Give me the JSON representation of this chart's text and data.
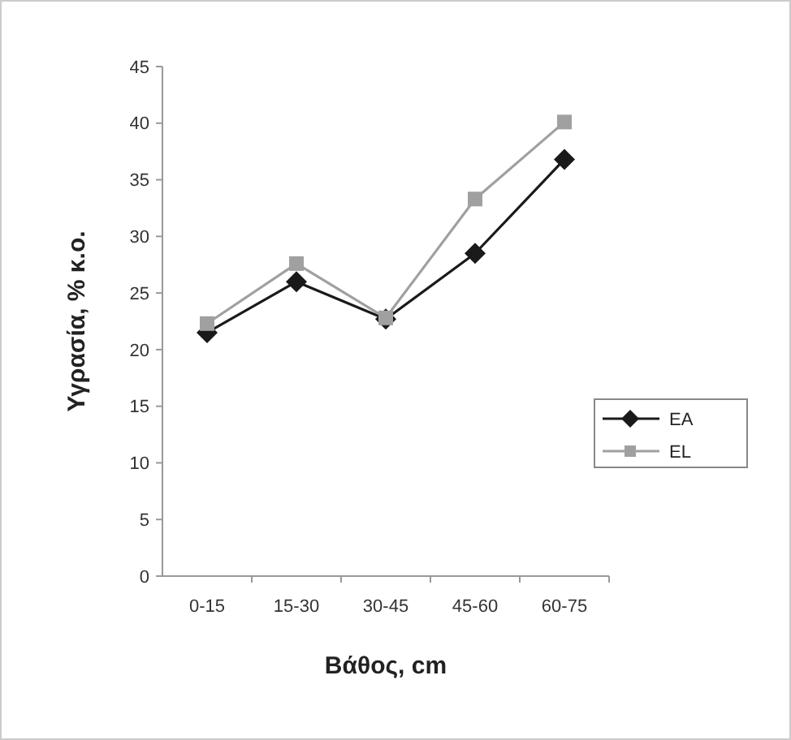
{
  "chart_data": {
    "type": "line",
    "xlabel": "Βάθος, cm",
    "ylabel": "Υγρασία, % κ.ο.",
    "categories": [
      "0-15",
      "15-30",
      "30-45",
      "45-60",
      "60-75"
    ],
    "series": [
      {
        "name": "EA",
        "color": "#1a1a1a",
        "marker": "diamond",
        "values": [
          21.5,
          26,
          22.7,
          28.5,
          36.8
        ]
      },
      {
        "name": "EL",
        "color": "#a0a0a0",
        "marker": "square",
        "values": [
          22.3,
          27.6,
          22.8,
          33.3,
          40.1
        ]
      }
    ],
    "ylim": [
      0,
      45
    ],
    "yticks": [
      0,
      5,
      10,
      15,
      20,
      25,
      30,
      35,
      40,
      45
    ],
    "grid": false,
    "legend": "right"
  }
}
